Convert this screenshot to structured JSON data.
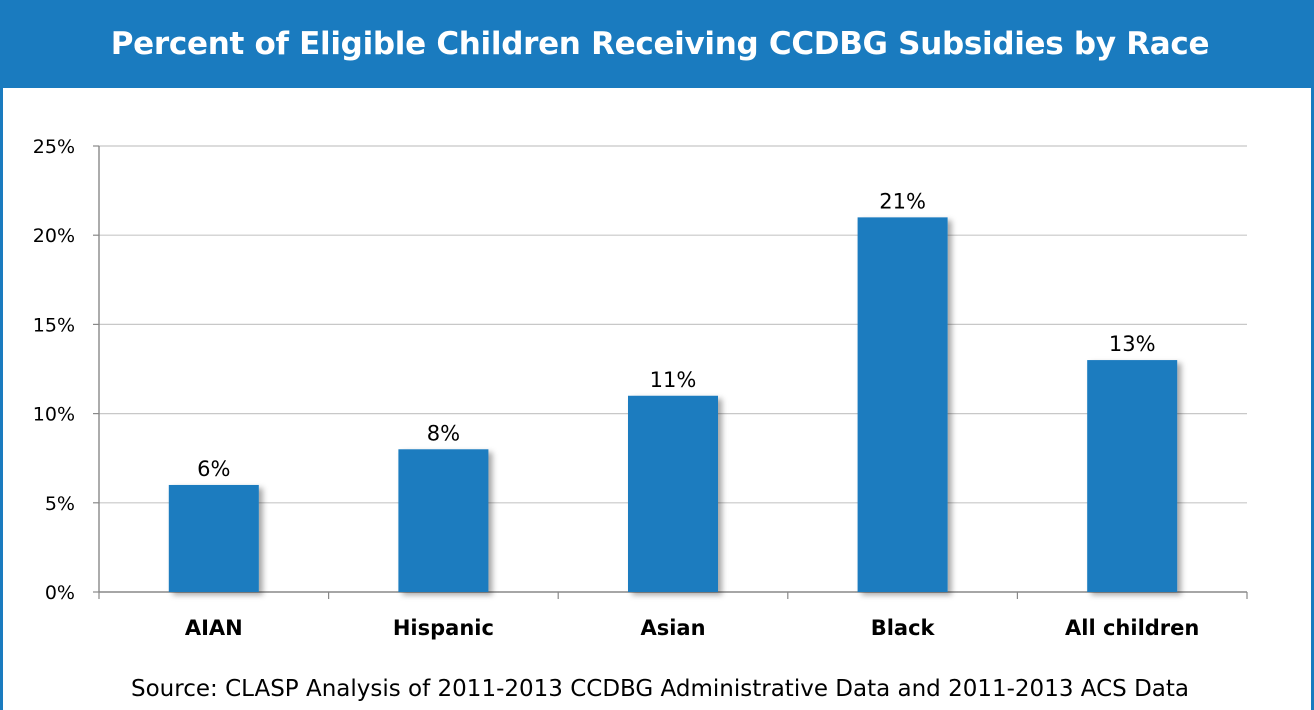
{
  "colors": {
    "accent": "#1a7bbf",
    "bar": "#1a7bbf",
    "grid": "#c8c8c8",
    "axis": "#888888"
  },
  "chart_data": {
    "type": "bar",
    "title": "Percent of Eligible Children Receiving CCDBG Subsidies by Race",
    "categories": [
      "AIAN",
      "Hispanic",
      "Asian",
      "Black",
      "All children"
    ],
    "values": [
      6,
      8,
      11,
      21,
      13
    ],
    "data_labels": [
      "6%",
      "8%",
      "11%",
      "21%",
      "13%"
    ],
    "y_ticks": [
      0,
      5,
      10,
      15,
      20,
      25
    ],
    "y_tick_labels": [
      "0%",
      "5%",
      "10%",
      "15%",
      "20%",
      "25%"
    ],
    "ylim": [
      0,
      25
    ],
    "grid": true,
    "legend": "none",
    "source": "Source: CLASP Analysis of 2011-2013 CCDBG Administrative Data and 2011-2013 ACS Data"
  }
}
